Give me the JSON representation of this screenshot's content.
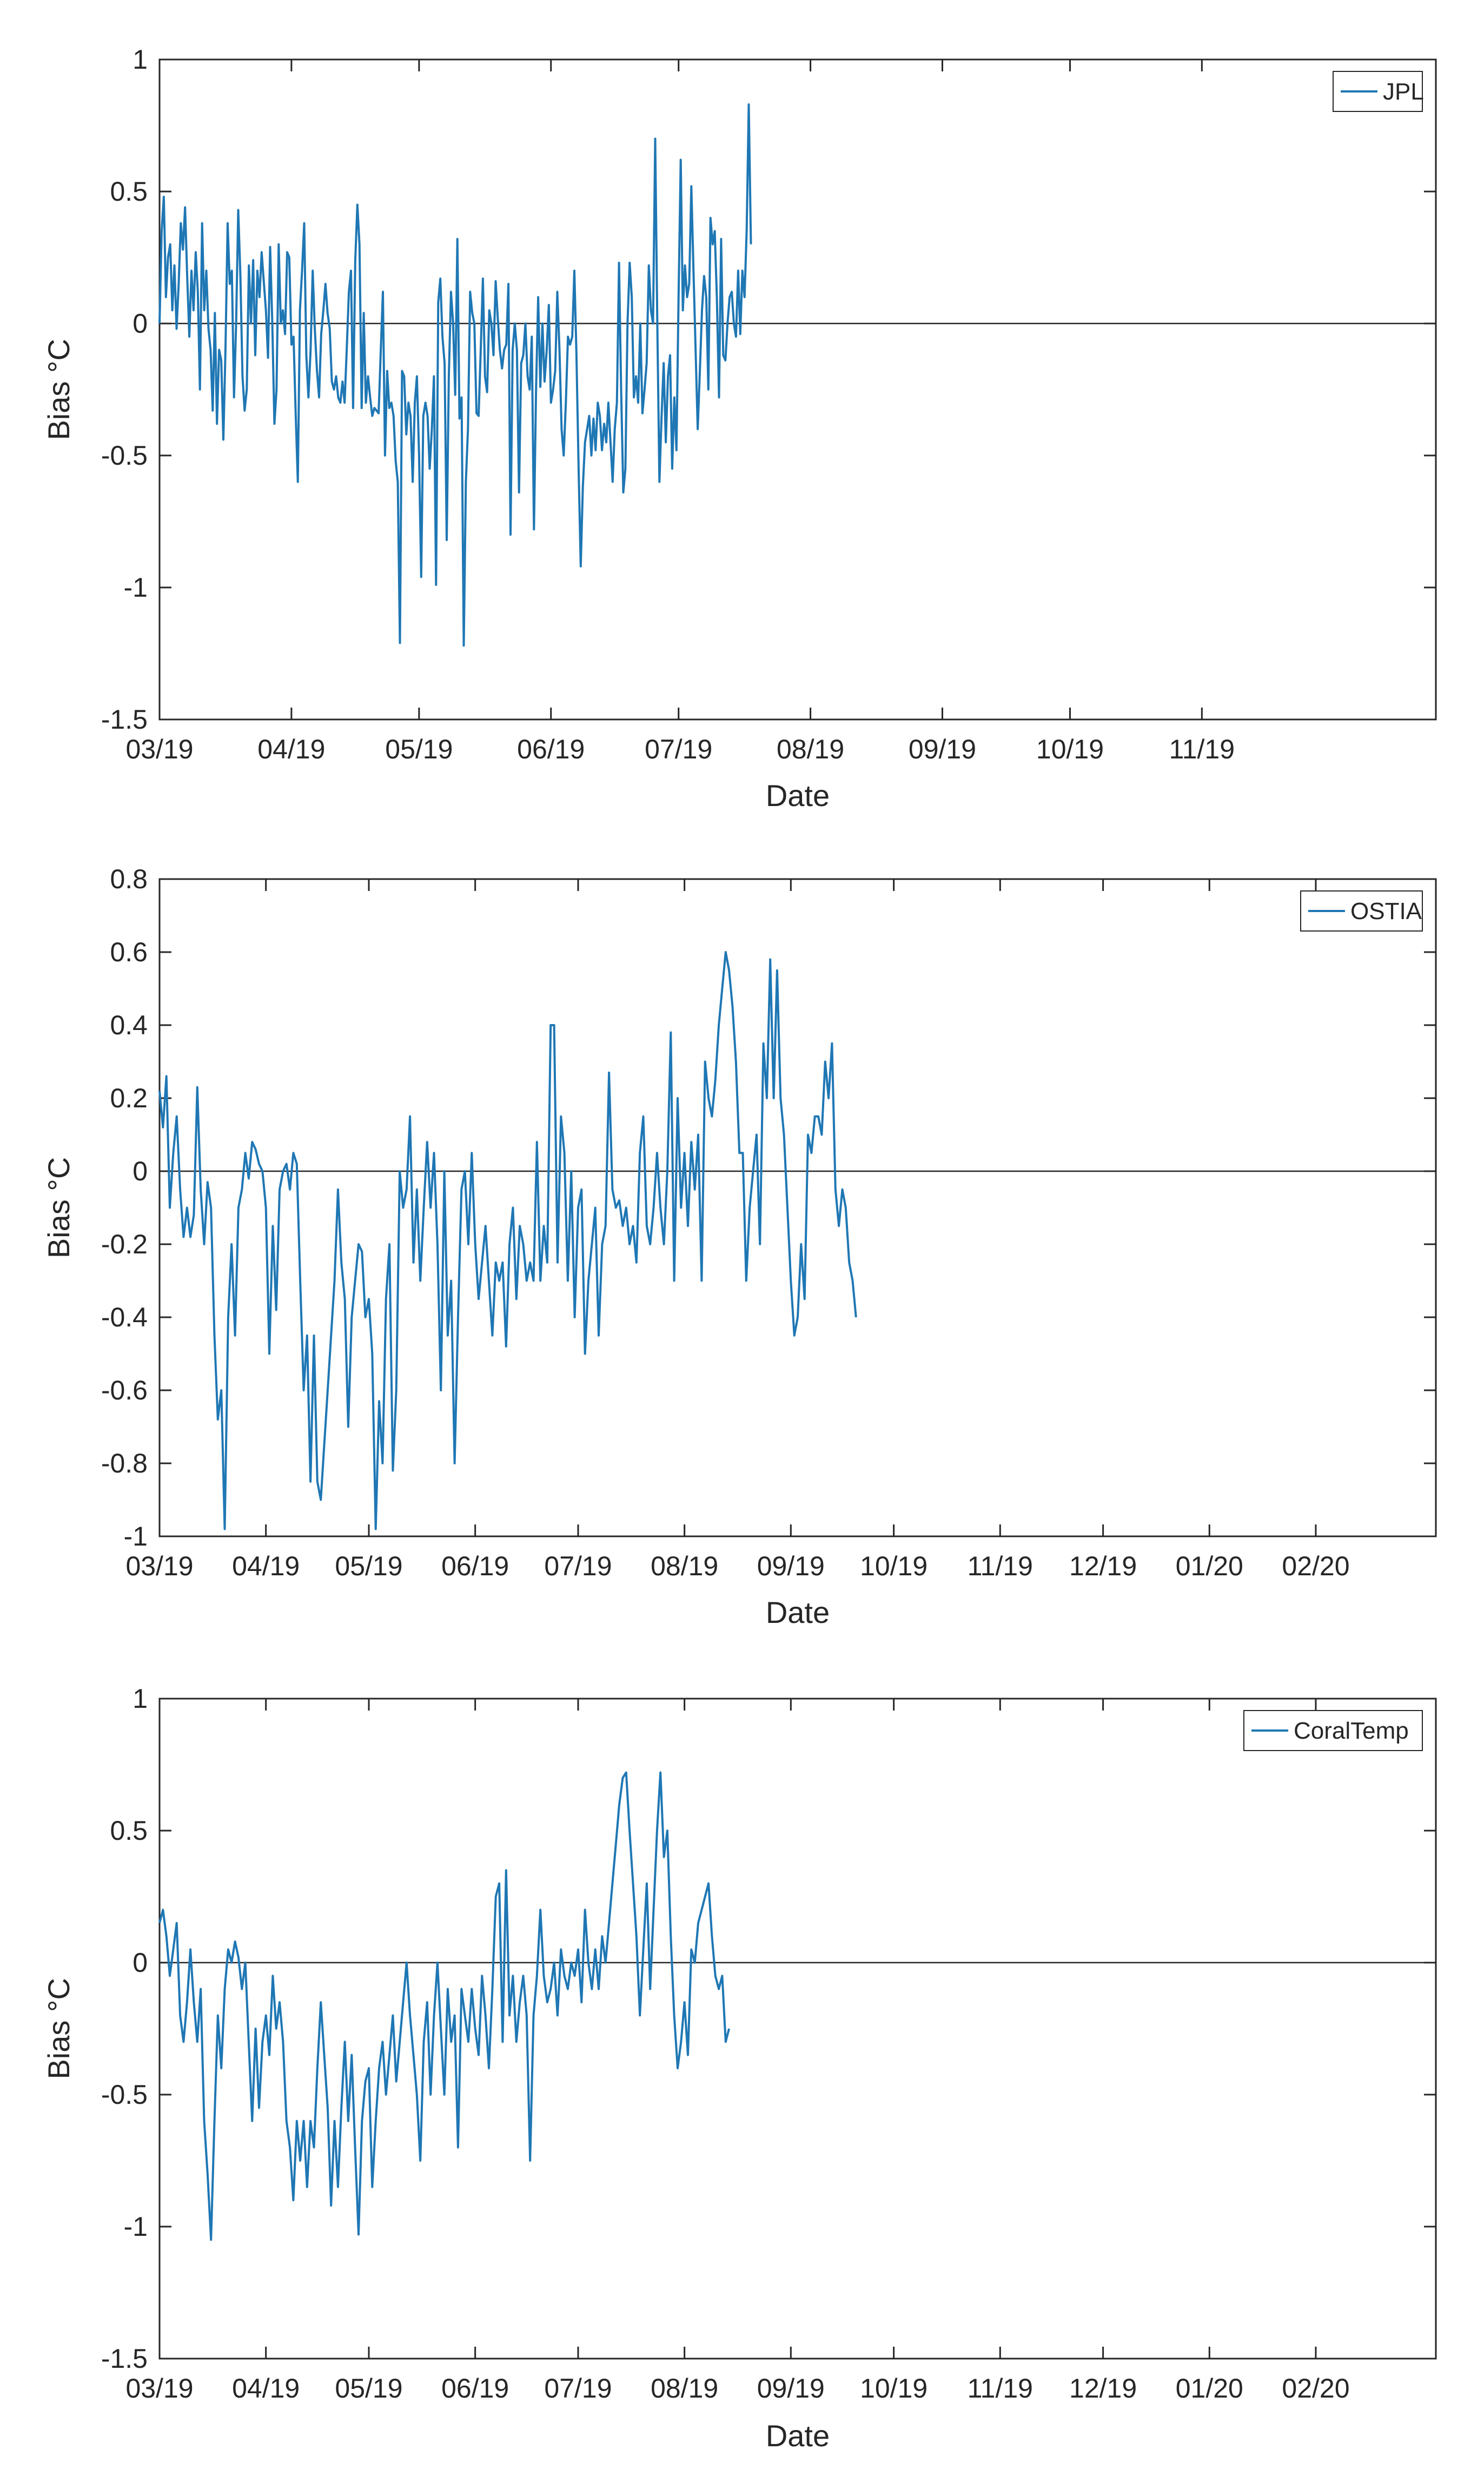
{
  "chart_data": [
    {
      "type": "line",
      "ylabel": "Bias °C",
      "xlabel": "Date",
      "ylim": [
        -1.5,
        1
      ],
      "yticks": [
        "-1.5",
        "-1",
        "-0.5",
        "0",
        "0.5",
        "1"
      ],
      "yticks_values": [
        -1.5,
        -1,
        -0.5,
        0,
        0.5,
        1
      ],
      "xlim_days": [
        0,
        300
      ],
      "xticks": [
        "03/19",
        "04/19",
        "05/19",
        "06/19",
        "07/19",
        "08/19",
        "09/19",
        "10/19",
        "11/19"
      ],
      "xticks_days": [
        0,
        31,
        61,
        92,
        122,
        153,
        184,
        214,
        245
      ],
      "legend": "JPL",
      "legend_position": "top-right",
      "color": "#1f77b4",
      "series": [
        {
          "name": "JPL",
          "start_day": 0,
          "step_days": 0.5,
          "values": [
            0.0,
            0.35,
            0.48,
            0.1,
            0.25,
            0.3,
            0.05,
            0.22,
            -0.02,
            0.15,
            0.38,
            0.28,
            0.44,
            0.18,
            -0.05,
            0.2,
            0.05,
            0.27,
            0.12,
            -0.25,
            0.38,
            0.05,
            0.2,
            -0.02,
            -0.1,
            -0.33,
            0.04,
            -0.38,
            -0.1,
            -0.14,
            -0.44,
            -0.1,
            0.38,
            0.15,
            0.2,
            -0.28,
            0.0,
            0.43,
            0.18,
            -0.2,
            -0.33,
            -0.25,
            0.22,
            0.0,
            0.24,
            -0.12,
            0.2,
            0.1,
            0.27,
            0.16,
            0.05,
            -0.13,
            0.29,
            0.0,
            -0.38,
            -0.25,
            0.3,
            0.0,
            0.05,
            -0.04,
            0.27,
            0.25,
            -0.08,
            -0.05,
            -0.34,
            -0.6,
            0.05,
            0.2,
            0.38,
            -0.12,
            -0.28,
            -0.1,
            0.2,
            -0.02,
            -0.18,
            -0.28,
            -0.04,
            0.05,
            0.15,
            0.04,
            -0.02,
            -0.22,
            -0.25,
            -0.2,
            -0.28,
            -0.3,
            -0.22,
            -0.3,
            -0.1,
            0.12,
            0.2,
            -0.32,
            0.24,
            0.45,
            0.3,
            -0.32,
            0.04,
            -0.3,
            -0.2,
            -0.28,
            -0.35,
            -0.32,
            -0.33,
            -0.34,
            -0.1,
            0.12,
            -0.5,
            -0.18,
            -0.32,
            -0.3,
            -0.35,
            -0.52,
            -0.6,
            -1.21,
            -0.18,
            -0.2,
            -0.42,
            -0.3,
            -0.35,
            -0.6,
            -0.3,
            -0.2,
            -0.5,
            -0.96,
            -0.35,
            -0.3,
            -0.35,
            -0.55,
            -0.4,
            -0.2,
            -0.99,
            0.08,
            0.17,
            -0.05,
            -0.15,
            -0.82,
            -0.2,
            0.12,
            0.0,
            -0.27,
            0.32,
            -0.36,
            -0.28,
            -1.22,
            -0.6,
            -0.4,
            0.12,
            0.04,
            0.0,
            -0.34,
            -0.35,
            -0.1,
            0.17,
            -0.2,
            -0.26,
            0.05,
            0.0,
            -0.12,
            0.16,
            0.02,
            -0.1,
            -0.17,
            -0.1,
            -0.08,
            0.15,
            -0.8,
            -0.1,
            0.0,
            -0.1,
            -0.64,
            -0.15,
            -0.12,
            0.0,
            -0.2,
            -0.25,
            -0.05,
            -0.78,
            -0.25,
            0.1,
            -0.24,
            0.0,
            -0.22,
            -0.1,
            0.07,
            -0.3,
            -0.25,
            -0.18,
            0.12,
            -0.1,
            -0.4,
            -0.5,
            -0.3,
            -0.05,
            -0.08,
            -0.05,
            0.2,
            -0.12,
            -0.55,
            -0.92,
            -0.62,
            -0.45,
            -0.4,
            -0.35,
            -0.5,
            -0.36,
            -0.48,
            -0.3,
            -0.35,
            -0.48,
            -0.38,
            -0.45,
            -0.3,
            -0.45,
            -0.6,
            -0.4,
            -0.3,
            0.23,
            -0.25,
            -0.64,
            -0.55,
            0.0,
            0.23,
            0.1,
            -0.28,
            -0.2,
            -0.3,
            0.0,
            -0.34,
            -0.25,
            -0.15,
            0.22,
            0.05,
            0.0,
            0.7,
            0.0,
            -0.6,
            -0.35,
            -0.15,
            -0.45,
            -0.2,
            -0.12,
            -0.55,
            -0.28,
            -0.48,
            0.1,
            0.62,
            0.05,
            0.22,
            0.1,
            0.15,
            0.52,
            0.2,
            -0.1,
            -0.4,
            -0.18,
            0.05,
            0.18,
            0.1,
            -0.25,
            0.4,
            0.3,
            0.35,
            0.1,
            -0.28,
            0.32,
            -0.12,
            -0.14,
            0.0,
            0.1,
            0.12,
            0.0,
            -0.05,
            0.2,
            -0.04,
            0.2,
            0.1,
            0.35,
            0.83,
            0.3
          ]
        }
      ]
    },
    {
      "type": "line",
      "ylabel": "Bias °C",
      "xlabel": "Date",
      "ylim": [
        -1,
        0.8
      ],
      "yticks": [
        "-1",
        "-0.8",
        "-0.6",
        "-0.4",
        "-0.2",
        "0",
        "0.2",
        "0.4",
        "0.6",
        "0.8"
      ],
      "yticks_values": [
        -1,
        -0.8,
        -0.6,
        -0.4,
        -0.2,
        0,
        0.2,
        0.4,
        0.6,
        0.8
      ],
      "xlim_days": [
        0,
        372
      ],
      "xticks": [
        "03/19",
        "04/19",
        "05/19",
        "06/19",
        "07/19",
        "08/19",
        "09/19",
        "10/19",
        "11/19",
        "12/19",
        "01/20",
        "02/20"
      ],
      "xticks_days": [
        0,
        31,
        61,
        92,
        122,
        153,
        184,
        214,
        245,
        275,
        306,
        337
      ],
      "legend": "OSTIA",
      "legend_position": "top-right",
      "color": "#1f77b4",
      "series": [
        {
          "name": "OSTIA",
          "start_day": 0,
          "step_days": 1,
          "values": [
            0.22,
            0.12,
            0.26,
            -0.1,
            0.05,
            0.15,
            -0.05,
            -0.18,
            -0.1,
            -0.18,
            -0.12,
            0.23,
            -0.05,
            -0.2,
            -0.03,
            -0.1,
            -0.45,
            -0.68,
            -0.6,
            -0.98,
            -0.4,
            -0.2,
            -0.45,
            -0.1,
            -0.05,
            0.05,
            -0.02,
            0.08,
            0.06,
            0.02,
            0.0,
            -0.1,
            -0.5,
            -0.15,
            -0.38,
            -0.05,
            0.0,
            0.02,
            -0.05,
            0.05,
            0.02,
            -0.3,
            -0.6,
            -0.45,
            -0.85,
            -0.45,
            -0.85,
            -0.9,
            -0.75,
            -0.6,
            -0.45,
            -0.3,
            -0.05,
            -0.25,
            -0.35,
            -0.7,
            -0.4,
            -0.3,
            -0.2,
            -0.22,
            -0.4,
            -0.35,
            -0.5,
            -0.98,
            -0.63,
            -0.8,
            -0.35,
            -0.2,
            -0.82,
            -0.6,
            0.0,
            -0.1,
            -0.05,
            0.15,
            -0.25,
            -0.05,
            -0.3,
            -0.1,
            0.08,
            -0.1,
            0.05,
            -0.2,
            -0.6,
            0.0,
            -0.45,
            -0.3,
            -0.8,
            -0.4,
            -0.05,
            0.0,
            -0.2,
            0.05,
            -0.2,
            -0.35,
            -0.25,
            -0.15,
            -0.3,
            -0.45,
            -0.25,
            -0.3,
            -0.25,
            -0.48,
            -0.2,
            -0.1,
            -0.35,
            -0.15,
            -0.2,
            -0.3,
            -0.25,
            -0.3,
            0.08,
            -0.3,
            -0.15,
            -0.25,
            0.4,
            0.4,
            -0.25,
            0.15,
            0.05,
            -0.3,
            0.0,
            -0.4,
            -0.1,
            -0.05,
            -0.5,
            -0.3,
            -0.2,
            -0.1,
            -0.45,
            -0.2,
            -0.15,
            0.27,
            -0.05,
            -0.1,
            -0.08,
            -0.15,
            -0.1,
            -0.2,
            -0.15,
            -0.25,
            0.05,
            0.15,
            -0.15,
            -0.2,
            -0.1,
            0.05,
            -0.1,
            -0.2,
            0.0,
            0.38,
            -0.3,
            0.2,
            -0.1,
            0.05,
            -0.15,
            0.08,
            -0.05,
            0.1,
            -0.3,
            0.3,
            0.2,
            0.15,
            0.25,
            0.4,
            0.5,
            0.6,
            0.55,
            0.45,
            0.3,
            0.05,
            0.05,
            -0.3,
            -0.1,
            0.0,
            0.1,
            -0.2,
            0.35,
            0.2,
            0.58,
            0.2,
            0.55,
            0.2,
            0.1,
            -0.1,
            -0.3,
            -0.45,
            -0.4,
            -0.2,
            -0.35,
            0.1,
            0.05,
            0.15,
            0.15,
            0.1,
            0.3,
            0.2,
            0.35,
            -0.05,
            -0.15,
            -0.05,
            -0.1,
            -0.25,
            -0.3,
            -0.4
          ]
        }
      ]
    },
    {
      "type": "line",
      "ylabel": "Bias °C",
      "xlabel": "Date",
      "ylim": [
        -1.5,
        1
      ],
      "yticks": [
        "-1.5",
        "-1",
        "-0.5",
        "0",
        "0.5",
        "1"
      ],
      "yticks_values": [
        -1.5,
        -1,
        -0.5,
        0,
        0.5,
        1
      ],
      "xlim_days": [
        0,
        372
      ],
      "xticks": [
        "03/19",
        "04/19",
        "05/19",
        "06/19",
        "07/19",
        "08/19",
        "09/19",
        "10/19",
        "11/19",
        "12/19",
        "01/20",
        "02/20"
      ],
      "xticks_days": [
        0,
        31,
        61,
        92,
        122,
        153,
        184,
        214,
        245,
        275,
        306,
        337
      ],
      "legend": "CoralTemp",
      "legend_position": "top-right",
      "color": "#1f77b4",
      "series": [
        {
          "name": "CoralTemp",
          "start_day": 0,
          "step_days": 1,
          "values": [
            0.15,
            0.2,
            0.1,
            -0.05,
            0.05,
            0.15,
            -0.2,
            -0.3,
            -0.15,
            0.05,
            -0.15,
            -0.3,
            -0.1,
            -0.6,
            -0.8,
            -1.05,
            -0.6,
            -0.2,
            -0.4,
            -0.1,
            0.05,
            0.0,
            0.08,
            0.02,
            -0.1,
            0.0,
            -0.3,
            -0.6,
            -0.25,
            -0.55,
            -0.3,
            -0.2,
            -0.35,
            -0.05,
            -0.25,
            -0.15,
            -0.3,
            -0.6,
            -0.7,
            -0.9,
            -0.6,
            -0.75,
            -0.6,
            -0.85,
            -0.6,
            -0.7,
            -0.4,
            -0.15,
            -0.35,
            -0.55,
            -0.92,
            -0.6,
            -0.85,
            -0.55,
            -0.3,
            -0.6,
            -0.35,
            -0.7,
            -1.03,
            -0.6,
            -0.45,
            -0.4,
            -0.85,
            -0.6,
            -0.4,
            -0.3,
            -0.5,
            -0.35,
            -0.2,
            -0.45,
            -0.3,
            -0.15,
            0.0,
            -0.2,
            -0.35,
            -0.5,
            -0.75,
            -0.3,
            -0.15,
            -0.5,
            -0.2,
            0.0,
            -0.25,
            -0.5,
            -0.1,
            -0.3,
            -0.2,
            -0.7,
            -0.1,
            -0.2,
            -0.3,
            -0.1,
            -0.25,
            -0.35,
            -0.05,
            -0.2,
            -0.4,
            -0.1,
            0.25,
            0.3,
            -0.3,
            0.35,
            -0.2,
            -0.05,
            -0.3,
            -0.15,
            -0.05,
            -0.2,
            -0.75,
            -0.2,
            -0.05,
            0.2,
            -0.05,
            -0.15,
            -0.1,
            0.0,
            -0.2,
            0.05,
            -0.05,
            -0.1,
            0.0,
            -0.05,
            0.05,
            -0.15,
            0.2,
            0.0,
            -0.1,
            0.05,
            -0.1,
            0.1,
            0.0,
            0.15,
            0.3,
            0.45,
            0.6,
            0.7,
            0.72,
            0.5,
            0.3,
            0.1,
            -0.2,
            0.05,
            0.3,
            -0.1,
            0.2,
            0.5,
            0.72,
            0.4,
            0.5,
            0.1,
            -0.2,
            -0.4,
            -0.3,
            -0.15,
            -0.35,
            0.05,
            0.0,
            0.15,
            0.2,
            0.25,
            0.3,
            0.1,
            -0.05,
            -0.1,
            -0.05,
            -0.3,
            -0.25
          ]
        }
      ]
    }
  ]
}
